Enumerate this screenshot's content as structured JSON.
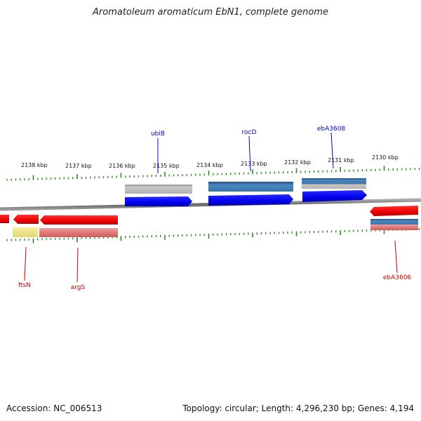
{
  "title": "Aromatoleum aromaticum EbN1, complete genome",
  "accession": "Accession: NC_006513",
  "summary": "Topology: circular; Length: 4,296,230 bp; Genes: 4,194",
  "colors": {
    "tick": "#2e8b22",
    "forward_cds": "#0000ff",
    "reverse_cds": "#ff0000",
    "forward_label": "#0000cc",
    "reverse_label": "#cc0000",
    "backbone": "#777777"
  },
  "scale_labels": [
    "2138 kbp",
    "2137 kbp",
    "2136 kbp",
    "2135 kbp",
    "2134 kbp",
    "2133 kbp",
    "2132 kbp",
    "2131 kbp",
    "2130 kbp"
  ],
  "forward_gene_labels": [
    "ubiB",
    "rocD",
    "ebA3608"
  ],
  "reverse_gene_labels": [
    "ftsN",
    "argS",
    "ebA3606"
  ]
}
